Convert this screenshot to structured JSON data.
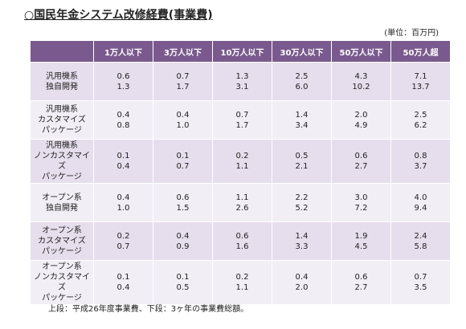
{
  "title": "○国民年金システム改修経費(事業費)",
  "unit": "(単位：百万円)",
  "table": {
    "columns": [
      "1万人以下",
      "3万人以下",
      "10万人以下",
      "30万人以下",
      "50万人以下",
      "50万人超"
    ],
    "rows": [
      {
        "label": [
          "汎用機系",
          "独自開発"
        ],
        "cells": [
          [
            "0.6",
            "1.3"
          ],
          [
            "0.7",
            "1.7"
          ],
          [
            "1.3",
            "3.1"
          ],
          [
            "2.5",
            "6.0"
          ],
          [
            "4.3",
            "10.2"
          ],
          [
            "7.1",
            "13.7"
          ]
        ]
      },
      {
        "label": [
          "汎用機系",
          "カスタマイズ",
          "パッケージ"
        ],
        "cells": [
          [
            "0.4",
            "0.8"
          ],
          [
            "0.4",
            "1.0"
          ],
          [
            "0.7",
            "1.7"
          ],
          [
            "1.4",
            "3.4"
          ],
          [
            "2.0",
            "4.9"
          ],
          [
            "2.5",
            "6.2"
          ]
        ]
      },
      {
        "label": [
          "汎用機系",
          "ノンカスタマイズ",
          "パッケージ"
        ],
        "cells": [
          [
            "0.1",
            "0.4"
          ],
          [
            "0.1",
            "0.7"
          ],
          [
            "0.2",
            "1.1"
          ],
          [
            "0.5",
            "2.1"
          ],
          [
            "0.6",
            "2.7"
          ],
          [
            "0.8",
            "3.7"
          ]
        ]
      },
      {
        "label": [
          "オープン系",
          "独自開発"
        ],
        "cells": [
          [
            "0.4",
            "1.0"
          ],
          [
            "0.6",
            "1.5"
          ],
          [
            "1.1",
            "2.6"
          ],
          [
            "2.2",
            "5.2"
          ],
          [
            "3.0",
            "7.2"
          ],
          [
            "4.0",
            "9.4"
          ]
        ]
      },
      {
        "label": [
          "オープン系",
          "カスタマイズ",
          "パッケージ"
        ],
        "cells": [
          [
            "0.2",
            "0.7"
          ],
          [
            "0.4",
            "0.9"
          ],
          [
            "0.6",
            "1.6"
          ],
          [
            "1.4",
            "3.3"
          ],
          [
            "1.9",
            "4.5"
          ],
          [
            "2.4",
            "5.8"
          ]
        ]
      },
      {
        "label": [
          "オープン系",
          "ノンカスタマイズ",
          "パッケージ"
        ],
        "cells": [
          [
            "0.1",
            "0.4"
          ],
          [
            "0.1",
            "0.5"
          ],
          [
            "0.2",
            "1.1"
          ],
          [
            "0.4",
            "2.0"
          ],
          [
            "0.6",
            "2.7"
          ],
          [
            "0.7",
            "3.5"
          ]
        ]
      }
    ]
  },
  "footnote": "上段：平成26年度事業費、下段：3ヶ年の事業費総額。"
}
